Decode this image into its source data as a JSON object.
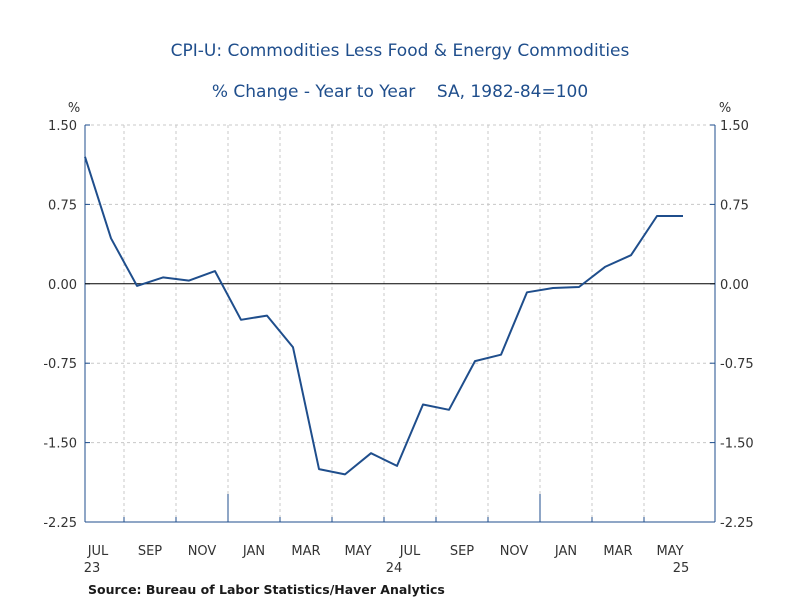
{
  "chart_data": {
    "type": "line",
    "title": "CPI-U: Commodities Less Food & Energy Commodities",
    "subtitle": "% Change - Year to Year    SA, 1982-84=100",
    "y_unit_left": "%",
    "y_unit_right": "%",
    "ylim": [
      -2.25,
      1.5
    ],
    "y_ticks": [
      1.5,
      0.75,
      0.0,
      -0.75,
      -1.5,
      -2.25
    ],
    "y_tick_labels": [
      "1.50",
      "0.75",
      "0.00",
      "-0.75",
      "-1.50",
      "-2.25"
    ],
    "x_tick_labels": [
      "JUL",
      "SEP",
      "NOV",
      "JAN",
      "MAR",
      "MAY",
      "JUL",
      "SEP",
      "NOV",
      "JAN",
      "MAR",
      "MAY"
    ],
    "x_year_labels": [
      "23",
      "24",
      "25"
    ],
    "grid": true,
    "series": [
      {
        "color": "#1f4e8c",
        "x": [
          "2023-07",
          "2023-08",
          "2023-09",
          "2023-10",
          "2023-11",
          "2023-12",
          "2024-01",
          "2024-02",
          "2024-03",
          "2024-04",
          "2024-05",
          "2024-06",
          "2024-07",
          "2024-08",
          "2024-09",
          "2024-10",
          "2024-11",
          "2024-12",
          "2025-01",
          "2025-02",
          "2025-03",
          "2025-04",
          "2025-05",
          "2025-06"
        ],
        "values": [
          1.2,
          0.43,
          -0.02,
          0.06,
          0.03,
          0.12,
          -0.34,
          -0.3,
          -0.6,
          -1.75,
          -1.8,
          -1.6,
          -1.72,
          -1.14,
          -1.19,
          -0.73,
          -0.67,
          -0.08,
          -0.04,
          -0.03,
          0.16,
          0.27,
          0.64,
          0.64
        ]
      }
    ]
  },
  "source": "Source:  Bureau of Labor Statistics/Haver Analytics"
}
